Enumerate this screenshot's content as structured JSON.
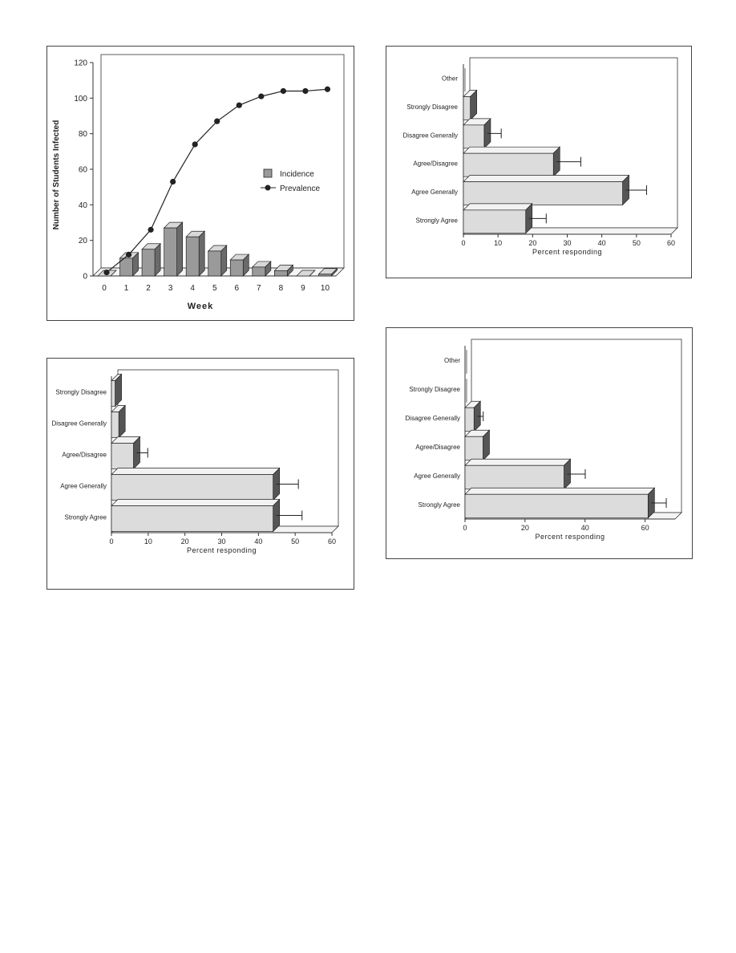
{
  "chart_data": [
    {
      "type": "bar",
      "subtype": "bar+line",
      "xlabel": "Week",
      "ylabel": "Number of Students Infected",
      "ylim": [
        0,
        120
      ],
      "yticks": [
        0,
        20,
        40,
        60,
        80,
        100,
        120
      ],
      "categories": [
        "0",
        "1",
        "2",
        "3",
        "4",
        "5",
        "6",
        "7",
        "8",
        "9",
        "10"
      ],
      "series": [
        {
          "name": "Incidence",
          "kind": "bar",
          "color": "#9a9a9a",
          "values": [
            0,
            10,
            15,
            27,
            22,
            14,
            9,
            5,
            3,
            0,
            1
          ]
        },
        {
          "name": "Prevalence",
          "kind": "line",
          "color": "#222222",
          "values": [
            2,
            12,
            26,
            53,
            74,
            87,
            96,
            101,
            104,
            104,
            105
          ]
        }
      ],
      "legend_position": "center-right",
      "grid": false
    },
    {
      "type": "bar",
      "orientation": "horizontal",
      "xlabel": "Percent responding",
      "xlim": [
        0,
        60
      ],
      "xticks": [
        0,
        10,
        20,
        30,
        40,
        50,
        60
      ],
      "categories": [
        "Other",
        "Strongly Disagree",
        "Disagree Generally",
        "Agree/Disagree",
        "Agree Generally",
        "Strongly Agree"
      ],
      "values": [
        0,
        2,
        6,
        26,
        46,
        18
      ],
      "errors": [
        0,
        0,
        4,
        7,
        6,
        5
      ],
      "grid": false
    },
    {
      "type": "bar",
      "orientation": "horizontal",
      "xlabel": "Percent responding",
      "xlim": [
        0,
        60
      ],
      "xticks": [
        0,
        10,
        20,
        30,
        40,
        50,
        60
      ],
      "categories": [
        "Strongly Disagree",
        "Disagree Generally",
        "Agree/Disagree",
        "Agree Generally",
        "Strongly Agree"
      ],
      "values": [
        1,
        2,
        6,
        44,
        44
      ],
      "errors": [
        0,
        0,
        3,
        6,
        7
      ],
      "grid": false
    },
    {
      "type": "bar",
      "orientation": "horizontal",
      "xlabel": "Percent responding",
      "xlim": [
        0,
        70
      ],
      "xticks": [
        0,
        20,
        40,
        60
      ],
      "categories": [
        "Other",
        "Strongly Disagree",
        "Disagree Generally",
        "Agree/Disagree",
        "Agree Generally",
        "Strongly Agree"
      ],
      "values": [
        0,
        0,
        3,
        6,
        33,
        61
      ],
      "errors": [
        0,
        0,
        2,
        0,
        6,
        5
      ],
      "grid": false
    }
  ]
}
